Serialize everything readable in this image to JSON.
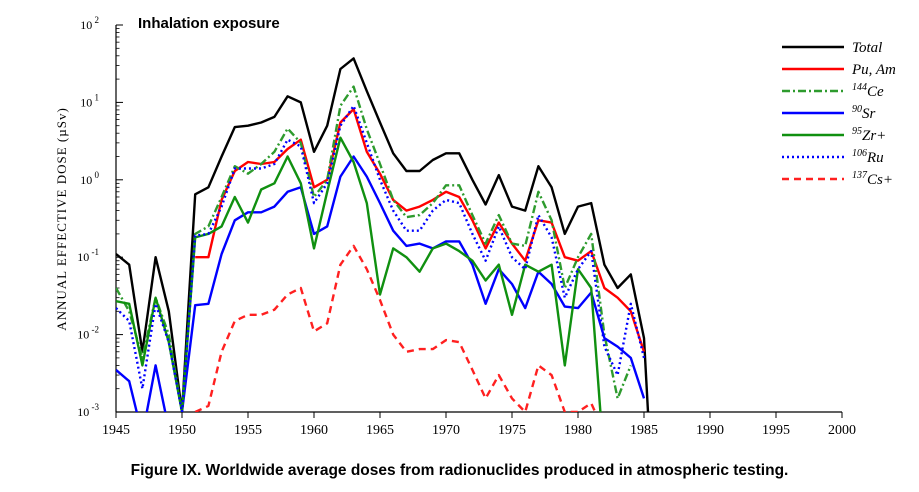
{
  "caption": "Figure IX.  Worldwide average doses from radionuclides produced in atmospheric testing.",
  "chart_data": {
    "type": "line",
    "title": "Inhalation exposure",
    "ylabel": "ANNUAL  EFFECTIVE  DOSE  (µSv)",
    "xlabel": "",
    "xlim": [
      1945,
      2000
    ],
    "ylim": [
      0.001,
      100
    ],
    "yscale": "log",
    "grid": false,
    "legend_position": "top-right",
    "x_ticks": [
      1945,
      1950,
      1955,
      1960,
      1965,
      1970,
      1975,
      1980,
      1985,
      1990,
      1995,
      2000
    ],
    "y_ticks": [
      {
        "value": 0.001,
        "base": "10",
        "exp": "-3"
      },
      {
        "value": 0.01,
        "base": "10",
        "exp": "-2"
      },
      {
        "value": 0.1,
        "base": "10",
        "exp": "-1"
      },
      {
        "value": 1,
        "base": "10",
        "exp": "0"
      },
      {
        "value": 10,
        "base": "10",
        "exp": "1"
      },
      {
        "value": 100,
        "base": "10",
        "exp": "2"
      }
    ],
    "series": [
      {
        "name": "Total",
        "label_sup": "",
        "label_main": "Total",
        "color": "#000000",
        "dash": "solid",
        "points": [
          [
            1945,
            0.11
          ],
          [
            1946,
            0.08
          ],
          [
            1947,
            0.006
          ],
          [
            1948,
            0.1
          ],
          [
            1949,
            0.02
          ],
          [
            1950,
            0.001
          ],
          [
            1951,
            0.65
          ],
          [
            1952,
            0.8
          ],
          [
            1953,
            2.0
          ],
          [
            1954,
            4.8
          ],
          [
            1955,
            5.0
          ],
          [
            1956,
            5.5
          ],
          [
            1957,
            6.5
          ],
          [
            1958,
            12.0
          ],
          [
            1959,
            10.0
          ],
          [
            1960,
            2.3
          ],
          [
            1961,
            5.0
          ],
          [
            1962,
            27.0
          ],
          [
            1963,
            37.0
          ],
          [
            1964,
            14.0
          ],
          [
            1965,
            5.5
          ],
          [
            1966,
            2.2
          ],
          [
            1967,
            1.3
          ],
          [
            1968,
            1.3
          ],
          [
            1969,
            1.8
          ],
          [
            1970,
            2.2
          ],
          [
            1971,
            2.2
          ],
          [
            1972,
            1.0
          ],
          [
            1973,
            0.48
          ],
          [
            1974,
            1.15
          ],
          [
            1975,
            0.45
          ],
          [
            1976,
            0.4
          ],
          [
            1977,
            1.5
          ],
          [
            1978,
            0.8
          ],
          [
            1979,
            0.2
          ],
          [
            1980,
            0.45
          ],
          [
            1981,
            0.5
          ],
          [
            1982,
            0.08
          ],
          [
            1983,
            0.04
          ],
          [
            1984,
            0.06
          ],
          [
            1985,
            0.009
          ],
          [
            1985.3,
            0.001
          ]
        ]
      },
      {
        "name": "Pu, Am",
        "label_sup": "",
        "label_main": "Pu, Am",
        "color": "#ff0000",
        "dash": "solid",
        "points": [
          [
            1951,
            0.1
          ],
          [
            1952,
            0.1
          ],
          [
            1953,
            0.55
          ],
          [
            1954,
            1.3
          ],
          [
            1955,
            1.7
          ],
          [
            1956,
            1.6
          ],
          [
            1957,
            1.7
          ],
          [
            1958,
            2.5
          ],
          [
            1959,
            3.3
          ],
          [
            1960,
            0.8
          ],
          [
            1961,
            1.0
          ],
          [
            1962,
            5.5
          ],
          [
            1963,
            8.2
          ],
          [
            1964,
            2.3
          ],
          [
            1965,
            1.2
          ],
          [
            1966,
            0.55
          ],
          [
            1967,
            0.4
          ],
          [
            1968,
            0.45
          ],
          [
            1969,
            0.55
          ],
          [
            1970,
            0.7
          ],
          [
            1971,
            0.6
          ],
          [
            1972,
            0.3
          ],
          [
            1973,
            0.13
          ],
          [
            1974,
            0.28
          ],
          [
            1975,
            0.15
          ],
          [
            1976,
            0.09
          ],
          [
            1977,
            0.3
          ],
          [
            1978,
            0.28
          ],
          [
            1979,
            0.1
          ],
          [
            1980,
            0.09
          ],
          [
            1981,
            0.12
          ],
          [
            1982,
            0.04
          ],
          [
            1983,
            0.03
          ],
          [
            1984,
            0.02
          ],
          [
            1985,
            0.006
          ]
        ]
      },
      {
        "name": "144Ce",
        "label_sup": "144",
        "label_main": "Ce",
        "color": "#2e9b2e",
        "dash": "dashdot",
        "points": [
          [
            1945,
            0.04
          ],
          [
            1946,
            0.02
          ],
          [
            1947,
            0.005
          ],
          [
            1948,
            0.03
          ],
          [
            1949,
            0.01
          ],
          [
            1950,
            0.001
          ],
          [
            1951,
            0.2
          ],
          [
            1952,
            0.25
          ],
          [
            1953,
            0.6
          ],
          [
            1954,
            1.5
          ],
          [
            1955,
            1.2
          ],
          [
            1956,
            1.6
          ],
          [
            1957,
            2.3
          ],
          [
            1958,
            4.6
          ],
          [
            1959,
            3.0
          ],
          [
            1960,
            0.6
          ],
          [
            1961,
            1.0
          ],
          [
            1962,
            9.0
          ],
          [
            1963,
            16.0
          ],
          [
            1964,
            4.5
          ],
          [
            1965,
            1.6
          ],
          [
            1966,
            0.55
          ],
          [
            1967,
            0.33
          ],
          [
            1968,
            0.35
          ],
          [
            1969,
            0.5
          ],
          [
            1970,
            0.85
          ],
          [
            1971,
            0.85
          ],
          [
            1972,
            0.35
          ],
          [
            1973,
            0.15
          ],
          [
            1974,
            0.35
          ],
          [
            1975,
            0.15
          ],
          [
            1976,
            0.14
          ],
          [
            1977,
            0.7
          ],
          [
            1978,
            0.3
          ],
          [
            1979,
            0.04
          ],
          [
            1980,
            0.1
          ],
          [
            1981,
            0.2
          ],
          [
            1982,
            0.01
          ],
          [
            1983,
            0.0015
          ],
          [
            1984,
            0.004
          ]
        ]
      },
      {
        "name": "90Sr",
        "label_sup": "90",
        "label_main": "Sr",
        "color": "#0000ff",
        "dash": "solid",
        "points": [
          [
            1945,
            0.0035
          ],
          [
            1946,
            0.0025
          ],
          [
            1947,
            0.0005
          ],
          [
            1948,
            0.004
          ],
          [
            1949,
            0.0006
          ],
          [
            1950,
            0.001
          ],
          [
            1951,
            0.024
          ],
          [
            1952,
            0.025
          ],
          [
            1953,
            0.11
          ],
          [
            1954,
            0.3
          ],
          [
            1955,
            0.38
          ],
          [
            1956,
            0.38
          ],
          [
            1957,
            0.45
          ],
          [
            1958,
            0.7
          ],
          [
            1959,
            0.8
          ],
          [
            1960,
            0.2
          ],
          [
            1961,
            0.25
          ],
          [
            1962,
            1.1
          ],
          [
            1963,
            2.0
          ],
          [
            1964,
            1.1
          ],
          [
            1965,
            0.5
          ],
          [
            1966,
            0.22
          ],
          [
            1967,
            0.14
          ],
          [
            1968,
            0.15
          ],
          [
            1969,
            0.13
          ],
          [
            1970,
            0.16
          ],
          [
            1971,
            0.16
          ],
          [
            1972,
            0.08
          ],
          [
            1973,
            0.025
          ],
          [
            1974,
            0.07
          ],
          [
            1975,
            0.045
          ],
          [
            1976,
            0.022
          ],
          [
            1977,
            0.065
          ],
          [
            1978,
            0.045
          ],
          [
            1979,
            0.023
          ],
          [
            1980,
            0.022
          ],
          [
            1981,
            0.035
          ],
          [
            1982,
            0.009
          ],
          [
            1983,
            0.007
          ],
          [
            1984,
            0.005
          ],
          [
            1985,
            0.0015
          ]
        ]
      },
      {
        "name": "95Zr+",
        "label_sup": "95",
        "label_main": "Zr+",
        "color": "#109010",
        "dash": "solid",
        "points": [
          [
            1945,
            0.027
          ],
          [
            1946,
            0.025
          ],
          [
            1947,
            0.004
          ],
          [
            1948,
            0.03
          ],
          [
            1949,
            0.008
          ],
          [
            1950,
            0.001
          ],
          [
            1951,
            0.18
          ],
          [
            1952,
            0.2
          ],
          [
            1953,
            0.25
          ],
          [
            1954,
            0.6
          ],
          [
            1955,
            0.28
          ],
          [
            1956,
            0.75
          ],
          [
            1957,
            0.9
          ],
          [
            1958,
            2.0
          ],
          [
            1959,
            0.9
          ],
          [
            1960,
            0.13
          ],
          [
            1961,
            0.7
          ],
          [
            1962,
            3.5
          ],
          [
            1963,
            1.7
          ],
          [
            1964,
            0.5
          ],
          [
            1965,
            0.033
          ],
          [
            1966,
            0.13
          ],
          [
            1967,
            0.1
          ],
          [
            1968,
            0.065
          ],
          [
            1969,
            0.13
          ],
          [
            1970,
            0.15
          ],
          [
            1971,
            0.12
          ],
          [
            1972,
            0.09
          ],
          [
            1973,
            0.05
          ],
          [
            1974,
            0.08
          ],
          [
            1975,
            0.018
          ],
          [
            1976,
            0.08
          ],
          [
            1977,
            0.065
          ],
          [
            1978,
            0.08
          ],
          [
            1979,
            0.004
          ],
          [
            1980,
            0.07
          ],
          [
            1981,
            0.04
          ],
          [
            1981.7,
            0.001
          ]
        ]
      },
      {
        "name": "106Ru",
        "label_sup": "106",
        "label_main": "Ru",
        "color": "#0000ff",
        "dash": "dotted",
        "points": [
          [
            1945,
            0.022
          ],
          [
            1946,
            0.015
          ],
          [
            1947,
            0.002
          ],
          [
            1948,
            0.025
          ],
          [
            1949,
            0.008
          ],
          [
            1950,
            0.001
          ],
          [
            1951,
            0.19
          ],
          [
            1952,
            0.2
          ],
          [
            1953,
            0.45
          ],
          [
            1954,
            1.4
          ],
          [
            1955,
            1.4
          ],
          [
            1956,
            1.4
          ],
          [
            1957,
            1.6
          ],
          [
            1958,
            3.3
          ],
          [
            1959,
            2.7
          ],
          [
            1960,
            0.5
          ],
          [
            1961,
            0.9
          ],
          [
            1962,
            5.0
          ],
          [
            1963,
            9.0
          ],
          [
            1964,
            3.0
          ],
          [
            1965,
            1.0
          ],
          [
            1966,
            0.4
          ],
          [
            1967,
            0.22
          ],
          [
            1968,
            0.22
          ],
          [
            1969,
            0.4
          ],
          [
            1970,
            0.55
          ],
          [
            1971,
            0.5
          ],
          [
            1972,
            0.2
          ],
          [
            1973,
            0.09
          ],
          [
            1974,
            0.25
          ],
          [
            1975,
            0.1
          ],
          [
            1976,
            0.07
          ],
          [
            1977,
            0.35
          ],
          [
            1978,
            0.18
          ],
          [
            1979,
            0.03
          ],
          [
            1980,
            0.07
          ],
          [
            1981,
            0.12
          ],
          [
            1982,
            0.007
          ],
          [
            1983,
            0.003
          ],
          [
            1984,
            0.025
          ],
          [
            1985,
            0.005
          ]
        ]
      },
      {
        "name": "137Cs+",
        "label_sup": "137",
        "label_main": "Cs+",
        "color": "#ff2020",
        "dash": "dashed",
        "points": [
          [
            1951,
            0.001
          ],
          [
            1952,
            0.0012
          ],
          [
            1953,
            0.006
          ],
          [
            1954,
            0.015
          ],
          [
            1955,
            0.018
          ],
          [
            1956,
            0.018
          ],
          [
            1957,
            0.021
          ],
          [
            1958,
            0.033
          ],
          [
            1959,
            0.04
          ],
          [
            1960,
            0.011
          ],
          [
            1961,
            0.014
          ],
          [
            1962,
            0.08
          ],
          [
            1963,
            0.14
          ],
          [
            1964,
            0.07
          ],
          [
            1965,
            0.028
          ],
          [
            1966,
            0.01
          ],
          [
            1967,
            0.006
          ],
          [
            1968,
            0.0065
          ],
          [
            1969,
            0.0065
          ],
          [
            1970,
            0.0085
          ],
          [
            1971,
            0.008
          ],
          [
            1972,
            0.0035
          ],
          [
            1973,
            0.0015
          ],
          [
            1974,
            0.003
          ],
          [
            1975,
            0.0015
          ],
          [
            1976,
            0.001
          ],
          [
            1977,
            0.004
          ],
          [
            1978,
            0.003
          ],
          [
            1979,
            0.001
          ],
          [
            1980,
            0.001
          ],
          [
            1981,
            0.0013
          ],
          [
            1981.3,
            0.001
          ]
        ]
      }
    ]
  }
}
